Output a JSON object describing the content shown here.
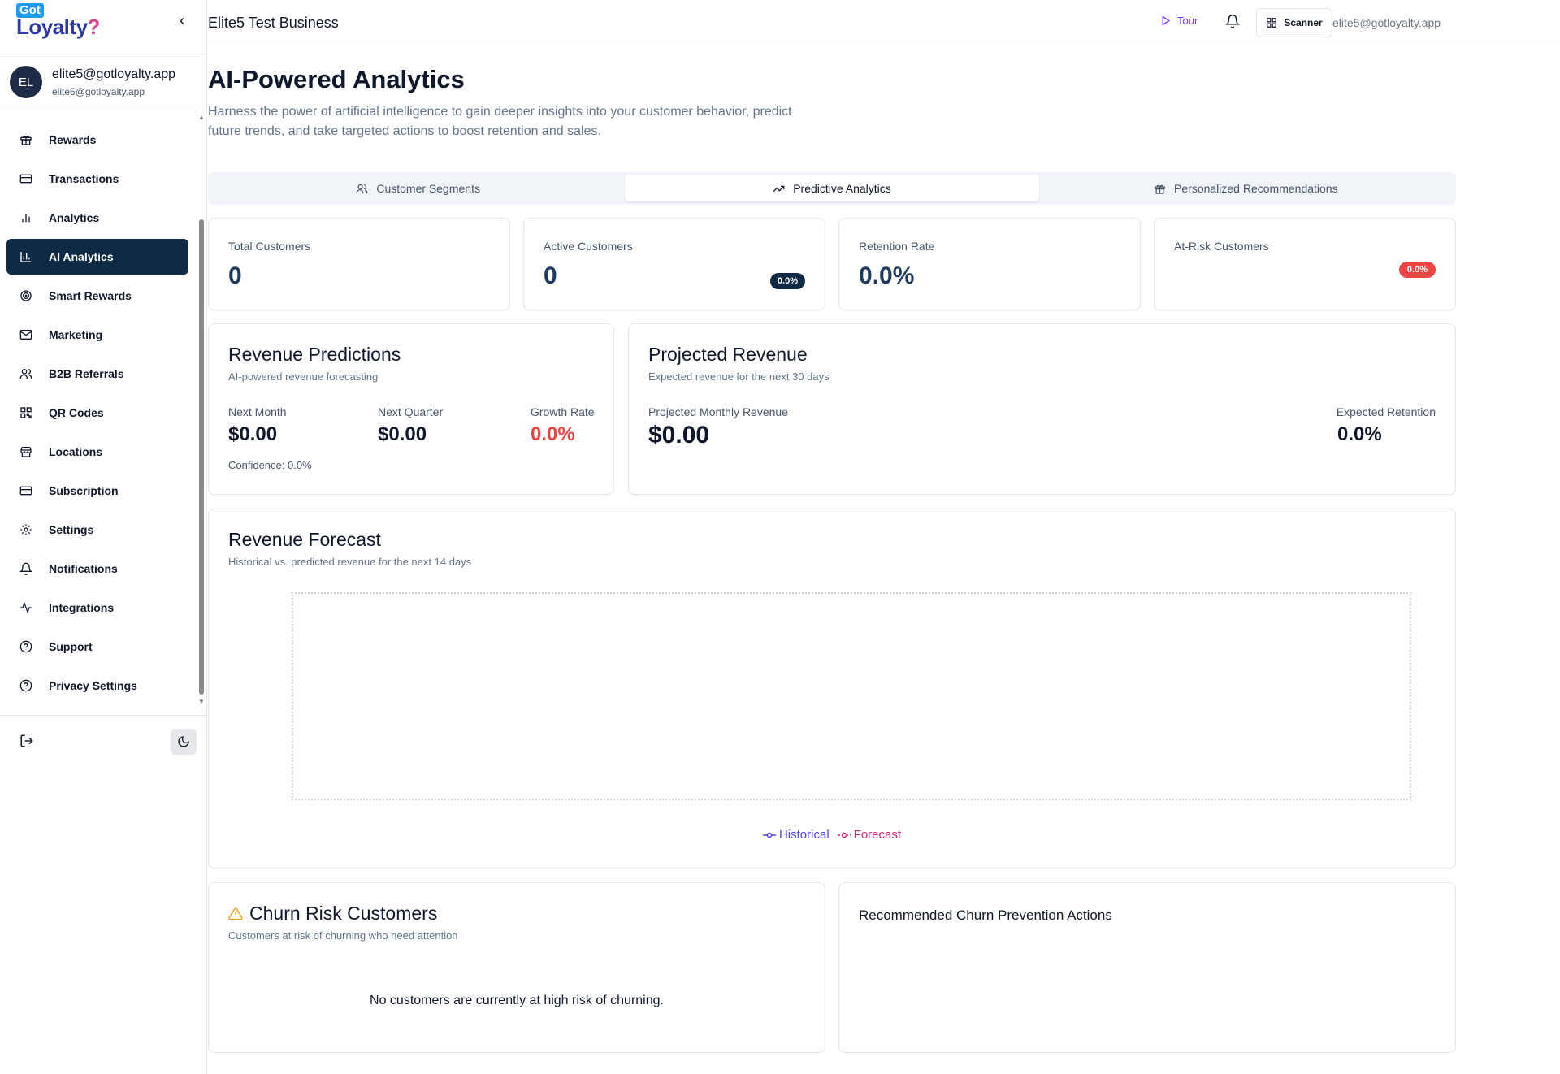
{
  "brand": {
    "got": "Got",
    "loyalty": "Loyalty",
    "mark": "?"
  },
  "user": {
    "initials": "EL",
    "name": "elite5@gotloyalty.app",
    "email": "elite5@gotloyalty.app"
  },
  "nav": [
    {
      "label": "Rewards",
      "icon": "gift-icon"
    },
    {
      "label": "Transactions",
      "icon": "card-icon"
    },
    {
      "label": "Analytics",
      "icon": "bar-chart-icon"
    },
    {
      "label": "AI Analytics",
      "icon": "chart-icon",
      "active": true
    },
    {
      "label": "Smart Rewards",
      "icon": "target-icon"
    },
    {
      "label": "Marketing",
      "icon": "mail-icon"
    },
    {
      "label": "B2B Referrals",
      "icon": "users-icon"
    },
    {
      "label": "QR Codes",
      "icon": "qr-icon"
    },
    {
      "label": "Locations",
      "icon": "store-icon"
    },
    {
      "label": "Subscription",
      "icon": "card-icon"
    },
    {
      "label": "Settings",
      "icon": "gear-icon"
    },
    {
      "label": "Notifications",
      "icon": "bell-icon"
    },
    {
      "label": "Integrations",
      "icon": "activity-icon"
    },
    {
      "label": "Support",
      "icon": "help-icon"
    },
    {
      "label": "Privacy Settings",
      "icon": "help-icon"
    }
  ],
  "header": {
    "business": "Elite5 Test Business",
    "tour": "Tour",
    "scanner": "Scanner",
    "email": "elite5@gotloyalty.app"
  },
  "page": {
    "title": "AI-Powered Analytics",
    "subtitle": "Harness the power of artificial intelligence to gain deeper insights into your customer behavior, predict future trends, and take targeted actions to boost retention and sales."
  },
  "tabs": [
    {
      "label": "Customer Segments",
      "icon": "users-icon"
    },
    {
      "label": "Predictive Analytics",
      "icon": "trending-up-icon",
      "active": true
    },
    {
      "label": "Personalized Recommendations",
      "icon": "gift-icon"
    }
  ],
  "kpis": {
    "total": {
      "label": "Total Customers",
      "value": "0"
    },
    "active": {
      "label": "Active Customers",
      "value": "0",
      "badge": "0.0%"
    },
    "retention": {
      "label": "Retention Rate",
      "value": "0.0%"
    },
    "at_risk": {
      "label": "At-Risk Customers",
      "badge": "0.0%"
    }
  },
  "revenue_predictions": {
    "title": "Revenue Predictions",
    "subtitle": "AI-powered revenue forecasting",
    "next_month_label": "Next Month",
    "next_month": "$0.00",
    "next_quarter_label": "Next Quarter",
    "next_quarter": "$0.00",
    "growth_label": "Growth Rate",
    "growth": "0.0%",
    "confidence": "Confidence: 0.0%"
  },
  "projected_revenue": {
    "title": "Projected Revenue",
    "subtitle": "Expected revenue for the next 30 days",
    "monthly_label": "Projected Monthly Revenue",
    "monthly": "$0.00",
    "retention_label": "Expected Retention",
    "retention": "0.0%"
  },
  "forecast": {
    "title": "Revenue Forecast",
    "subtitle": "Historical vs. predicted revenue for the next 14 days",
    "legend": [
      {
        "name": "Historical",
        "color": "#4f46e5"
      },
      {
        "name": "Forecast",
        "color": "#db2777"
      }
    ]
  },
  "chart_data": {
    "type": "line",
    "title": "Revenue Forecast",
    "series": [
      {
        "name": "Historical",
        "values": []
      },
      {
        "name": "Forecast",
        "values": []
      }
    ],
    "legend": "bottom-center"
  },
  "churn": {
    "title": "Churn Risk Customers",
    "subtitle": "Customers at risk of churning who need attention",
    "empty": "No customers are currently at high risk of churning."
  },
  "churn_actions": {
    "title": "Recommended Churn Prevention Actions"
  },
  "colors": {
    "primary": "#0f2a44",
    "danger": "#ef4444",
    "accent": "#7c3aed"
  }
}
